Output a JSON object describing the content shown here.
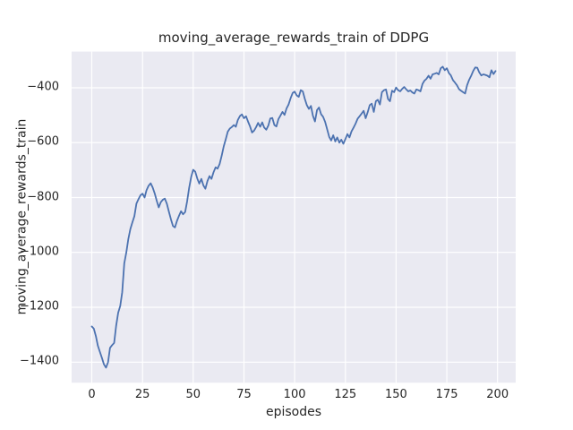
{
  "figure": {
    "title": "moving_average_rewards_train of DDPG",
    "xlabel": "episodes",
    "ylabel": "moving_average_rewards_train"
  },
  "style": {
    "figure_bg": "#ffffff",
    "axes_bg": "#EAEAF2",
    "grid_color": "#ffffff",
    "line_color": "#4C72B0",
    "text_color": "#262626"
  },
  "chart_data": {
    "type": "line",
    "title": "moving_average_rewards_train of DDPG",
    "xlabel": "episodes",
    "ylabel": "moving_average_rewards_train",
    "grid": true,
    "legend": null,
    "x_ticks": [
      0,
      25,
      50,
      75,
      100,
      125,
      150,
      175,
      200
    ],
    "y_ticks": [
      -1400,
      -1200,
      -1000,
      -800,
      -600,
      -400
    ],
    "xlim": [
      -9.95,
      208.95
    ],
    "ylim": [
      -1474.9,
      -268.2
    ],
    "series": [
      {
        "name": "moving_average_rewards_train",
        "x": [
          0,
          1,
          2,
          3,
          4,
          5,
          6,
          7,
          8,
          9,
          10,
          11,
          12,
          13,
          14,
          15,
          16,
          17,
          18,
          19,
          20,
          21,
          22,
          23,
          24,
          25,
          26,
          27,
          28,
          29,
          30,
          31,
          32,
          33,
          34,
          35,
          36,
          37,
          38,
          39,
          40,
          41,
          42,
          43,
          44,
          45,
          46,
          47,
          48,
          49,
          50,
          51,
          52,
          53,
          54,
          55,
          56,
          57,
          58,
          59,
          60,
          61,
          62,
          63,
          64,
          65,
          66,
          67,
          68,
          69,
          70,
          71,
          72,
          73,
          74,
          75,
          76,
          77,
          78,
          79,
          80,
          81,
          82,
          83,
          84,
          85,
          86,
          87,
          88,
          89,
          90,
          91,
          92,
          93,
          94,
          95,
          96,
          97,
          98,
          99,
          100,
          101,
          102,
          103,
          104,
          105,
          106,
          107,
          108,
          109,
          110,
          111,
          112,
          113,
          114,
          115,
          116,
          117,
          118,
          119,
          120,
          121,
          122,
          123,
          124,
          125,
          126,
          127,
          128,
          129,
          130,
          131,
          132,
          133,
          134,
          135,
          136,
          137,
          138,
          139,
          140,
          141,
          142,
          143,
          144,
          145,
          146,
          147,
          148,
          149,
          150,
          151,
          152,
          153,
          154,
          155,
          156,
          157,
          158,
          159,
          160,
          161,
          162,
          163,
          164,
          165,
          166,
          167,
          168,
          169,
          170,
          171,
          172,
          173,
          174,
          175,
          176,
          177,
          178,
          179,
          180,
          181,
          182,
          183,
          184,
          185,
          186,
          187,
          188,
          189,
          190,
          191,
          192,
          193,
          194,
          195,
          196,
          197,
          198,
          199
        ],
        "y": [
          -1270,
          -1278,
          -1305,
          -1340,
          -1363,
          -1385,
          -1408,
          -1420,
          -1400,
          -1348,
          -1338,
          -1330,
          -1268,
          -1220,
          -1195,
          -1145,
          -1040,
          -1000,
          -952,
          -915,
          -890,
          -868,
          -822,
          -806,
          -792,
          -786,
          -800,
          -773,
          -757,
          -748,
          -763,
          -785,
          -812,
          -836,
          -817,
          -808,
          -804,
          -823,
          -851,
          -879,
          -904,
          -909,
          -885,
          -866,
          -850,
          -861,
          -853,
          -814,
          -764,
          -724,
          -699,
          -706,
          -731,
          -749,
          -732,
          -756,
          -768,
          -740,
          -722,
          -732,
          -708,
          -690,
          -695,
          -678,
          -648,
          -615,
          -588,
          -560,
          -549,
          -543,
          -536,
          -542,
          -517,
          -503,
          -497,
          -511,
          -504,
          -523,
          -541,
          -563,
          -556,
          -543,
          -528,
          -542,
          -526,
          -545,
          -553,
          -538,
          -512,
          -510,
          -536,
          -541,
          -514,
          -501,
          -488,
          -499,
          -475,
          -461,
          -438,
          -419,
          -414,
          -428,
          -433,
          -409,
          -413,
          -441,
          -463,
          -477,
          -466,
          -502,
          -523,
          -481,
          -472,
          -496,
          -506,
          -524,
          -551,
          -579,
          -592,
          -573,
          -596,
          -581,
          -600,
          -589,
          -604,
          -587,
          -569,
          -581,
          -559,
          -546,
          -531,
          -513,
          -504,
          -494,
          -484,
          -511,
          -489,
          -463,
          -458,
          -488,
          -449,
          -444,
          -461,
          -416,
          -409,
          -406,
          -441,
          -449,
          -411,
          -416,
          -399,
          -409,
          -413,
          -404,
          -397,
          -406,
          -413,
          -410,
          -417,
          -421,
          -406,
          -409,
          -413,
          -386,
          -374,
          -367,
          -356,
          -367,
          -351,
          -349,
          -346,
          -351,
          -329,
          -323,
          -336,
          -329,
          -346,
          -355,
          -372,
          -381,
          -391,
          -405,
          -411,
          -416,
          -421,
          -391,
          -371,
          -356,
          -339,
          -326,
          -327,
          -344,
          -355,
          -351,
          -353,
          -356,
          -362,
          -336,
          -350,
          -339
        ]
      }
    ]
  }
}
